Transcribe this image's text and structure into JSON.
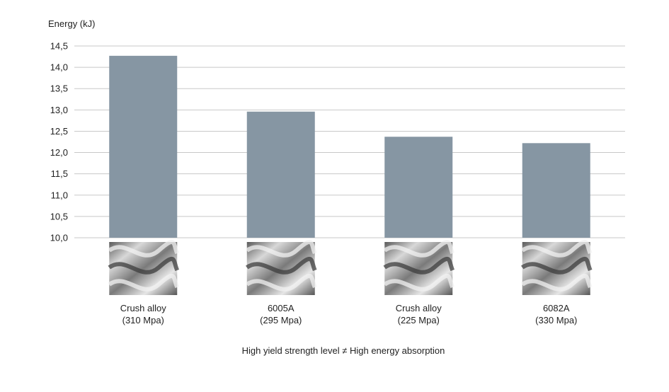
{
  "chart_data": {
    "type": "bar",
    "title": "",
    "ylabel": "Energy (kJ)",
    "xlabel": "",
    "caption": "High yield strength level ≠ High energy absorption",
    "ylim": [
      10.0,
      14.5
    ],
    "yticks": [
      "10,0",
      "10,5",
      "11,0",
      "11,5",
      "12,0",
      "12,5",
      "13,0",
      "13,5",
      "14,0",
      "14,5"
    ],
    "ytick_values": [
      10.0,
      10.5,
      11.0,
      11.5,
      12.0,
      12.5,
      13.0,
      13.5,
      14.0,
      14.5
    ],
    "grid": true,
    "categories": [
      {
        "name": "Crush alloy",
        "sub": "(310 Mpa)"
      },
      {
        "name": "6005A",
        "sub": "(295 Mpa)"
      },
      {
        "name": "Crush alloy",
        "sub": "(225 Mpa)"
      },
      {
        "name": "6082A",
        "sub": "(330 Mpa)"
      }
    ],
    "values": [
      14.27,
      12.96,
      12.37,
      12.22
    ],
    "bar_color": "#8696a3",
    "grid_color": "#c8c8c8",
    "images": [
      "crushed-profile-image",
      "crushed-profile-image",
      "crushed-profile-image",
      "crushed-profile-image"
    ]
  }
}
